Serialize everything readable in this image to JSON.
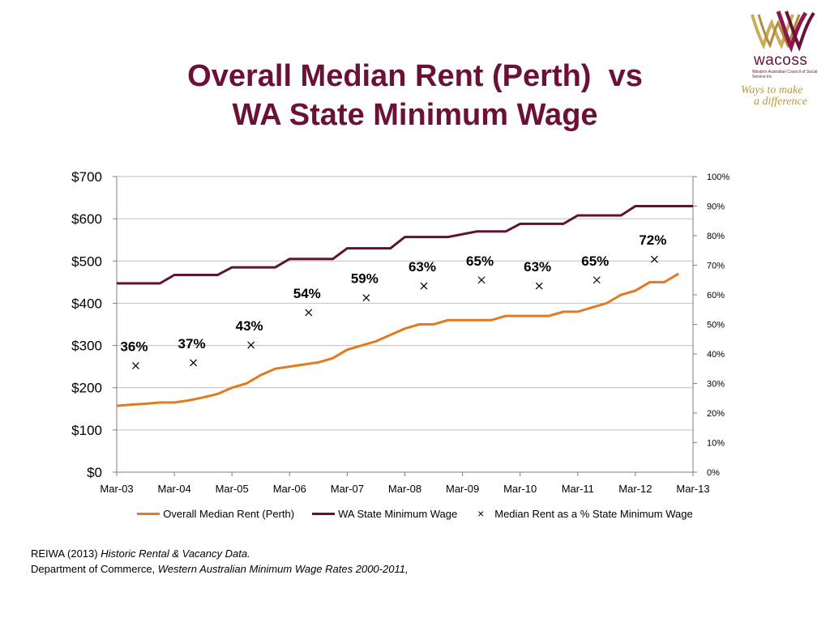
{
  "title": {
    "line1": "Overall Median Rent (Perth)  vs",
    "line2": "WA State Minimum Wage"
  },
  "logo": {
    "name": "wacoss",
    "subtitle": "Western Australian Council of Social Service inc",
    "tagline_1": "Ways to make",
    "tagline_2": "a difference"
  },
  "chart_data": {
    "type": "line",
    "x_ticks": [
      "Mar-03",
      "Mar-04",
      "Mar-05",
      "Mar-06",
      "Mar-07",
      "Mar-08",
      "Mar-09",
      "Mar-10",
      "Mar-11",
      "Mar-12",
      "Mar-13"
    ],
    "y_left_ticks": [
      "$0",
      "$100",
      "$200",
      "$300",
      "$400",
      "$500",
      "$600",
      "$700"
    ],
    "y_left_range": [
      0,
      700
    ],
    "y_right_ticks": [
      "0%",
      "10%",
      "20%",
      "30%",
      "40%",
      "50%",
      "60%",
      "70%",
      "80%",
      "90%",
      "100%"
    ],
    "y_right_range": [
      0,
      100
    ],
    "x_range": [
      2003.25,
      2013.25
    ],
    "grid": "horizontal",
    "legend": "bottom",
    "colors": {
      "rent": "#e07b1f",
      "wage": "#5e1435",
      "pct": "#000000"
    },
    "series": [
      {
        "name": "Overall Median Rent (Perth)",
        "axis": "left",
        "x": [
          2003.25,
          2003.5,
          2003.75,
          2004.0,
          2004.25,
          2004.5,
          2004.75,
          2005.0,
          2005.25,
          2005.5,
          2005.75,
          2006.0,
          2006.25,
          2006.5,
          2006.75,
          2007.0,
          2007.25,
          2007.5,
          2007.75,
          2008.0,
          2008.25,
          2008.5,
          2008.75,
          2009.0,
          2009.25,
          2009.5,
          2009.75,
          2010.0,
          2010.25,
          2010.5,
          2010.75,
          2011.0,
          2011.25,
          2011.5,
          2011.75,
          2012.0,
          2012.25,
          2012.5,
          2012.75,
          2013.0
        ],
        "values": [
          157,
          160,
          162,
          165,
          165,
          170,
          177,
          185,
          200,
          210,
          230,
          245,
          250,
          255,
          260,
          270,
          290,
          300,
          310,
          325,
          340,
          350,
          350,
          360,
          360,
          360,
          360,
          370,
          370,
          370,
          370,
          380,
          380,
          390,
          400,
          420,
          430,
          450,
          450,
          470
        ]
      },
      {
        "name": "WA State Minimum Wage",
        "axis": "left",
        "step": true,
        "x": [
          2003.25,
          2004.0,
          2004.25,
          2005.0,
          2005.25,
          2006.0,
          2006.25,
          2007.0,
          2007.25,
          2008.0,
          2008.25,
          2009.0,
          2009.5,
          2010.0,
          2010.25,
          2011.0,
          2011.25,
          2012.0,
          2012.25,
          2013.25
        ],
        "values": [
          447,
          447,
          467,
          467,
          485,
          485,
          505,
          505,
          530,
          530,
          557,
          557,
          570,
          570,
          588,
          588,
          608,
          608,
          630,
          630
        ]
      },
      {
        "name": "Median Rent as a % State Minimum Wage",
        "axis": "right",
        "marker": "x",
        "x": [
          2003.58,
          2004.58,
          2005.58,
          2006.58,
          2007.58,
          2008.58,
          2009.58,
          2010.58,
          2011.58,
          2012.58
        ],
        "values": [
          36,
          37,
          43,
          54,
          59,
          63,
          65,
          63,
          65,
          72
        ],
        "labels": [
          "36%",
          "37%",
          "43%",
          "54%",
          "59%",
          "63%",
          "65%",
          "63%",
          "65%",
          "72%"
        ]
      }
    ]
  },
  "sources": {
    "line1_prefix": "REIWA (2013) ",
    "line1_italic": "Historic Rental & Vacancy Data.",
    "line2_prefix": "Department of Commerce, ",
    "line2_italic": "Western Australian Minimum Wage Rates 2000-2011,"
  }
}
